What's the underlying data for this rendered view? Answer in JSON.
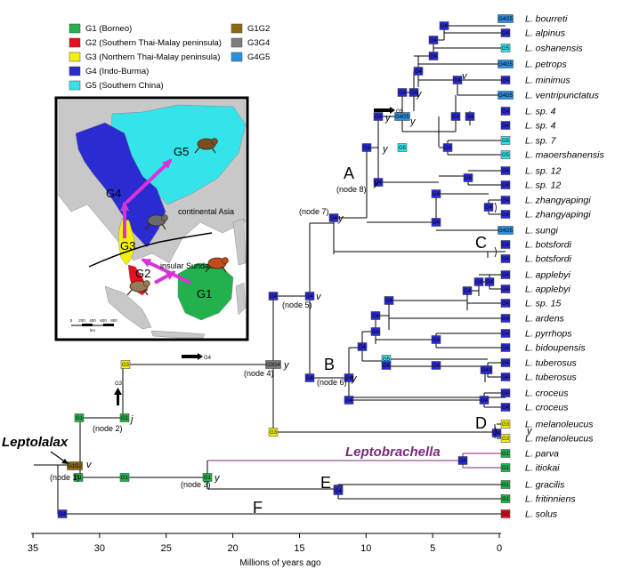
{
  "colors": {
    "G1": "#22b14c",
    "G2": "#e8101f",
    "G3": "#f5f00a",
    "G4": "#2a2bd0",
    "G5": "#35e4ea",
    "G1G2": "#8b6914",
    "G3G4": "#7d7d7d",
    "G4G5": "#2c8fdc",
    "leptobrachella": "#7a2a7e",
    "arrow": "#d932d9",
    "land": "#c8c8c8",
    "sea": "#ffffff"
  },
  "legend": [
    {
      "code": "G1",
      "label": "G1 (Borneo)"
    },
    {
      "code": "G2",
      "label": "G2 (Southern Thai-Malay peninsula)"
    },
    {
      "code": "G3",
      "label": "G3 (Northern Thai-Malay peninsula)"
    },
    {
      "code": "G4",
      "label": "G4 (Indo-Burma)"
    },
    {
      "code": "G5",
      "label": "G5 (Southern China)"
    },
    {
      "code": "G1G2",
      "label": "G1G2"
    },
    {
      "code": "G3G4",
      "label": "G3G4"
    },
    {
      "code": "G4G5",
      "label": "G4G5"
    }
  ],
  "map": {
    "region_labels": [
      "G1",
      "G2",
      "G3",
      "G4",
      "G5"
    ],
    "continental_label": "continental Asia",
    "insular_label": "insular Sundaland",
    "scale_ticks": [
      "0",
      "200",
      "400",
      "600",
      "800"
    ],
    "scale_unit": "km",
    "icons": [
      "frog-icon-g5",
      "frog-icon-g4",
      "frog-icon-g2",
      "frog-icon-g1"
    ]
  },
  "axis": {
    "title": "Millions of years ago",
    "ticks": [
      "35",
      "30",
      "25",
      "20",
      "15",
      "10",
      "5",
      "0"
    ]
  },
  "annotations": {
    "genus_leptolalax": "Leptolalax",
    "genus_leptobrachella": "Leptobrachella",
    "clade_letters": [
      "A",
      "B",
      "C",
      "D",
      "E",
      "F"
    ],
    "node_labels": [
      "(node 1)",
      "(node 2)",
      "(node 3)",
      "(node 4)",
      "(node 5)",
      "(node 6)",
      "(node 7)",
      "(node 8)"
    ],
    "event_marks": [
      "v",
      "j",
      "y",
      "y",
      "v",
      "y",
      "y",
      "y",
      "y",
      "y",
      "y",
      "y",
      "v",
      "y"
    ],
    "small_labels": [
      "G4",
      "G3",
      "G5"
    ]
  },
  "node_boxes": [
    "G1G2",
    "G1",
    "G1",
    "G1",
    "G3",
    "G1",
    "G1",
    "G3G4",
    "G3",
    "G4",
    "G4",
    "G4",
    "G4",
    "G4",
    "G4",
    "G4",
    "G4",
    "G4G5",
    "G5",
    "G4",
    "G4",
    "G4",
    "G4",
    "G4",
    "G4",
    "G4",
    "G4",
    "G4",
    "G4",
    "G4",
    "G4",
    "G4",
    "G4",
    "G4",
    "G4",
    "G4",
    "G4",
    "G4",
    "G4",
    "G5",
    "G4",
    "G4",
    "G4",
    "G4",
    "G4",
    "G4",
    "G4",
    "G4",
    "G4",
    "G4",
    "G4",
    "G4",
    "G4",
    "G3",
    "G1",
    "G1",
    "G2"
  ],
  "tips": [
    {
      "name": "L. bourreti",
      "area": "G4G5"
    },
    {
      "name": "L. alpinus",
      "area": "G4"
    },
    {
      "name": "L. oshanensis",
      "area": "G5"
    },
    {
      "name": "L. petrops",
      "area": "G4G5"
    },
    {
      "name": "L. minimus",
      "area": "G4"
    },
    {
      "name": "L. ventripunctatus",
      "area": "G4G5"
    },
    {
      "name": "L. sp. 4",
      "area": "G4"
    },
    {
      "name": "L. sp. 4",
      "area": "G4"
    },
    {
      "name": "L. sp. 7",
      "area": "G5"
    },
    {
      "name": "L. maoershanensis",
      "area": "G5"
    },
    {
      "name": "L. sp. 12",
      "area": "G4"
    },
    {
      "name": "L. sp. 12",
      "area": "G4"
    },
    {
      "name": "L. zhangyapingi",
      "area": "G4"
    },
    {
      "name": "L. zhangyapingi",
      "area": "G4"
    },
    {
      "name": "L. sungi",
      "area": "G4G5"
    },
    {
      "name": "L. botsfordi",
      "area": "G4"
    },
    {
      "name": "L. botsfordi",
      "area": "G4"
    },
    {
      "name": "L. applebyi",
      "area": "G4"
    },
    {
      "name": "L. applebyi",
      "area": "G4"
    },
    {
      "name": "L. sp. 15",
      "area": "G4"
    },
    {
      "name": "L. ardens",
      "area": "G4"
    },
    {
      "name": "L. pyrrhops",
      "area": "G4"
    },
    {
      "name": "L. bidoupensis",
      "area": "G4"
    },
    {
      "name": "L. tuberosus",
      "area": "G4"
    },
    {
      "name": "L. tuberosus",
      "area": "G4"
    },
    {
      "name": "L. croceus",
      "area": "G4"
    },
    {
      "name": "L. croceus",
      "area": "G4"
    },
    {
      "name": "L. melanoleucus",
      "area": "G3"
    },
    {
      "name": "L. melanoleucus",
      "area": "G3"
    },
    {
      "name": "L. parva",
      "area": "G1"
    },
    {
      "name": "L. itiokai",
      "area": "G1"
    },
    {
      "name": "L. gracilis",
      "area": "G1"
    },
    {
      "name": "L. fritinniens",
      "area": "G1"
    },
    {
      "name": "L. solus",
      "area": "G2"
    }
  ]
}
